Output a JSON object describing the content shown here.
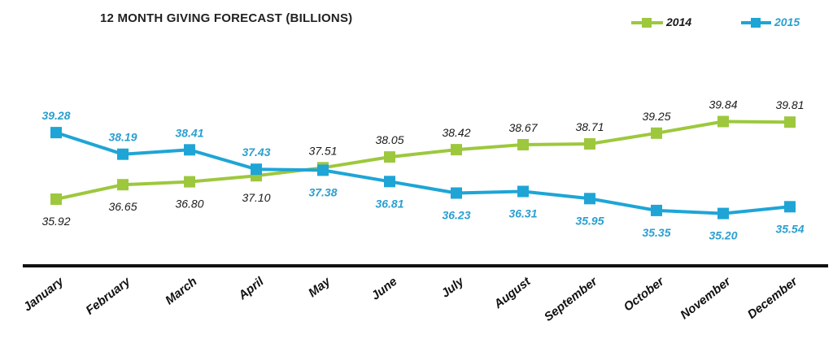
{
  "chart_data": {
    "type": "line",
    "title": "12 MONTH GIVING FORECAST (BILLIONS)",
    "categories": [
      "January",
      "February",
      "March",
      "April",
      "May",
      "June",
      "July",
      "August",
      "September",
      "October",
      "November",
      "December"
    ],
    "series": [
      {
        "name": "2014",
        "color": "#9dc83d",
        "label_color": "#1a1a1a",
        "values": [
          35.92,
          36.65,
          36.8,
          37.1,
          37.51,
          38.05,
          38.42,
          38.67,
          38.71,
          39.25,
          39.84,
          39.81
        ]
      },
      {
        "name": "2015",
        "color": "#1ea5d6",
        "label_color": "#2a9fd0",
        "values": [
          39.28,
          38.19,
          38.41,
          37.43,
          37.38,
          36.81,
          36.23,
          36.31,
          35.95,
          35.35,
          35.2,
          35.54
        ]
      }
    ],
    "xlabel": "",
    "ylabel": "",
    "ylim": [
      33.5,
      41.5
    ],
    "legend": "top-right",
    "grid": false
  }
}
